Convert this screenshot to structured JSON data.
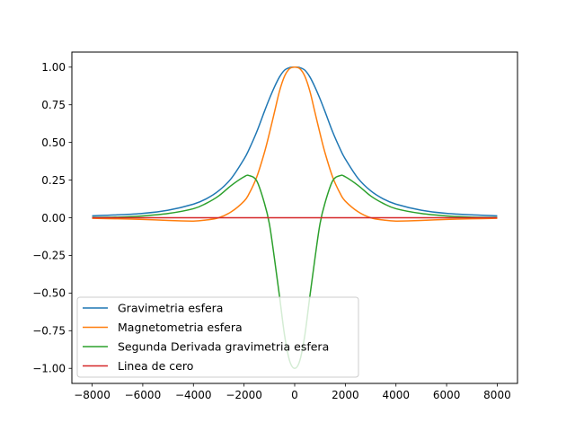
{
  "chart_data": {
    "type": "line",
    "title": "",
    "xlabel": "",
    "ylabel": "",
    "xlim": [
      -8800,
      8800
    ],
    "ylim": [
      -1.1,
      1.1
    ],
    "xticks": [
      -8000,
      -6000,
      -4000,
      -2000,
      0,
      2000,
      4000,
      6000,
      8000
    ],
    "xtick_labels": [
      "−8000",
      "−6000",
      "−4000",
      "−2000",
      "0",
      "2000",
      "4000",
      "6000",
      "8000"
    ],
    "yticks": [
      -1.0,
      -0.75,
      -0.5,
      -0.25,
      0.0,
      0.25,
      0.5,
      0.75,
      1.0
    ],
    "ytick_labels": [
      "−1.00",
      "−0.75",
      "−0.50",
      "−0.25",
      "0.00",
      "0.25",
      "0.50",
      "0.75",
      "1.00"
    ],
    "grid": false,
    "legend_position": "lower-left",
    "x": [
      -8000,
      -7000,
      -6000,
      -5000,
      -4000,
      -3500,
      -3000,
      -2500,
      -2000,
      -1800,
      -1500,
      -1200,
      -1000,
      -800,
      -600,
      -400,
      -200,
      0,
      200,
      400,
      600,
      800,
      1000,
      1200,
      1500,
      1800,
      2000,
      2500,
      3000,
      3500,
      4000,
      5000,
      6000,
      7000,
      8000
    ],
    "series": [
      {
        "name": "Gravimetria esfera",
        "color": "#1f77b4",
        "values": [
          0.013,
          0.019,
          0.029,
          0.05,
          0.09,
          0.125,
          0.179,
          0.262,
          0.39,
          0.455,
          0.57,
          0.704,
          0.79,
          0.868,
          0.935,
          0.98,
          0.997,
          1.0,
          0.997,
          0.98,
          0.935,
          0.868,
          0.79,
          0.704,
          0.57,
          0.455,
          0.39,
          0.262,
          0.179,
          0.125,
          0.09,
          0.05,
          0.029,
          0.019,
          0.013
        ]
      },
      {
        "name": "Magnetometria esfera",
        "color": "#ff7f0e",
        "values": [
          -0.004,
          -0.007,
          -0.011,
          -0.018,
          -0.022,
          -0.015,
          0.0,
          0.04,
          0.11,
          0.16,
          0.27,
          0.43,
          0.56,
          0.7,
          0.84,
          0.94,
          0.99,
          1.0,
          0.99,
          0.94,
          0.84,
          0.7,
          0.56,
          0.43,
          0.27,
          0.16,
          0.11,
          0.04,
          0.0,
          -0.015,
          -0.022,
          -0.018,
          -0.011,
          -0.007,
          -0.004
        ]
      },
      {
        "name": "Segunda Derivada gravimetria esfera",
        "color": "#2ca02c",
        "values": [
          0.002,
          0.004,
          0.012,
          0.028,
          0.06,
          0.095,
          0.145,
          0.215,
          0.272,
          0.28,
          0.245,
          0.1,
          -0.04,
          -0.27,
          -0.52,
          -0.78,
          -0.95,
          -1.0,
          -0.95,
          -0.78,
          -0.52,
          -0.27,
          -0.04,
          0.1,
          0.245,
          0.28,
          0.272,
          0.215,
          0.145,
          0.095,
          0.06,
          0.028,
          0.012,
          0.004,
          0.002
        ]
      },
      {
        "name": "Linea de cero",
        "color": "#d62728",
        "values": [
          0,
          0,
          0,
          0,
          0,
          0,
          0,
          0,
          0,
          0,
          0,
          0,
          0,
          0,
          0,
          0,
          0,
          0,
          0,
          0,
          0,
          0,
          0,
          0,
          0,
          0,
          0,
          0,
          0,
          0,
          0,
          0,
          0,
          0,
          0
        ]
      }
    ]
  }
}
